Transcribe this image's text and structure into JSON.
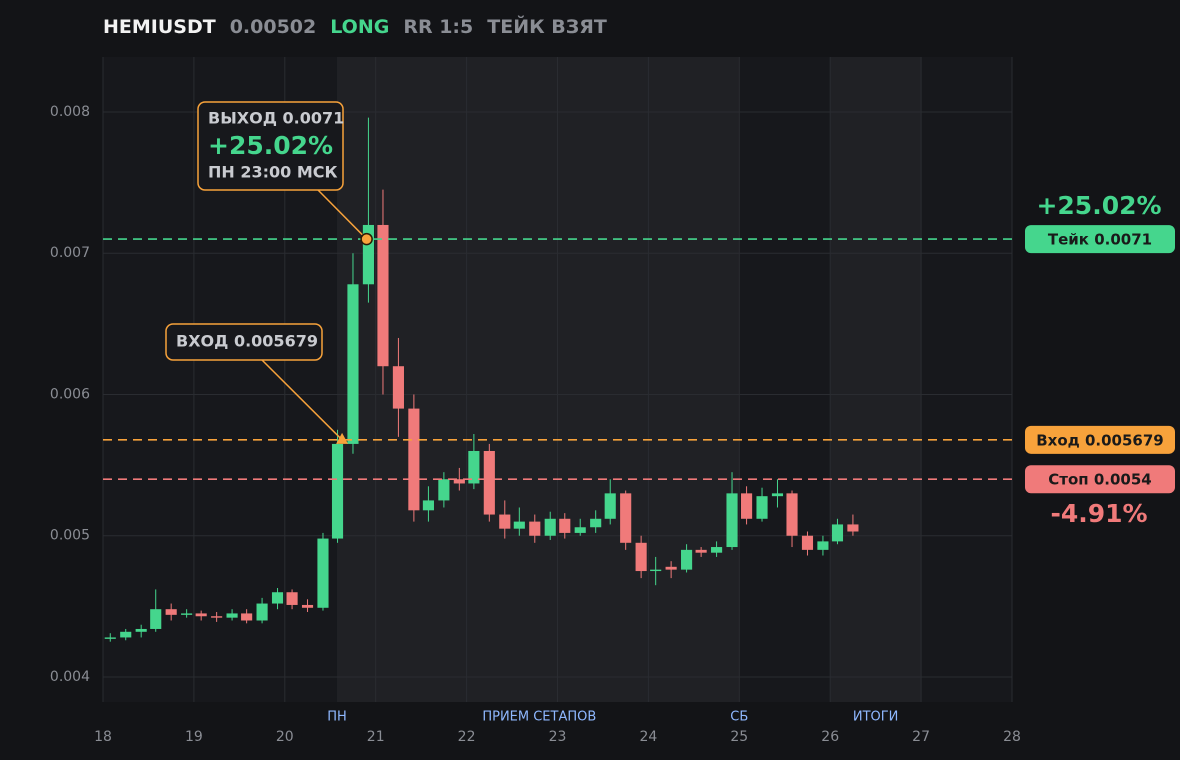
{
  "chart_data": {
    "type": "candlestick",
    "header": [
      "HEMIUSDT",
      "0.00502",
      "LONG",
      "RR 1:5",
      "ТЕЙК ВЗЯТ"
    ],
    "x": [
      18.08,
      18.25,
      18.42,
      18.58,
      18.75,
      18.92,
      19.08,
      19.25,
      19.42,
      19.58,
      19.75,
      19.92,
      20.08,
      20.25,
      20.42,
      20.58,
      20.75,
      20.92,
      21.08,
      21.25,
      21.42,
      21.58,
      21.75,
      21.92,
      22.08,
      22.25,
      22.42,
      22.58,
      22.75,
      22.92,
      23.08,
      23.25,
      23.42,
      23.58,
      23.75,
      23.92,
      24.08,
      24.25,
      24.42,
      24.58,
      24.75,
      24.92,
      25.08,
      25.25,
      25.42,
      25.58,
      25.75,
      25.92,
      26.08,
      26.25
    ],
    "open": [
      0.00427,
      0.00428,
      0.00432,
      0.00434,
      0.00448,
      0.00444,
      0.00445,
      0.00443,
      0.00442,
      0.00445,
      0.0044,
      0.00452,
      0.0046,
      0.00451,
      0.00449,
      0.00498,
      0.00565,
      0.00678,
      0.0072,
      0.0062,
      0.0059,
      0.00518,
      0.00525,
      0.0054,
      0.00537,
      0.0056,
      0.00515,
      0.00505,
      0.0051,
      0.005,
      0.00512,
      0.00502,
      0.00506,
      0.00512,
      0.0053,
      0.00495,
      0.00475,
      0.00478,
      0.00476,
      0.0049,
      0.00488,
      0.00492,
      0.0053,
      0.00512,
      0.00528,
      0.0053,
      0.005,
      0.0049,
      0.00496,
      0.00508
    ],
    "high": [
      0.00431,
      0.00434,
      0.00437,
      0.00462,
      0.00452,
      0.00448,
      0.00447,
      0.00446,
      0.00448,
      0.00448,
      0.00456,
      0.00463,
      0.00462,
      0.00455,
      0.00502,
      0.00575,
      0.007,
      0.00796,
      0.00745,
      0.0064,
      0.006,
      0.00535,
      0.00545,
      0.00548,
      0.00572,
      0.00565,
      0.00525,
      0.0052,
      0.00515,
      0.00517,
      0.00516,
      0.00512,
      0.00518,
      0.0054,
      0.00532,
      0.005,
      0.00485,
      0.00482,
      0.00494,
      0.00492,
      0.00496,
      0.00545,
      0.00535,
      0.00534,
      0.0054,
      0.00532,
      0.00503,
      0.005,
      0.00512,
      0.00515
    ],
    "low": [
      0.00425,
      0.00426,
      0.00428,
      0.00432,
      0.0044,
      0.00442,
      0.0044,
      0.00439,
      0.0044,
      0.00438,
      0.00438,
      0.00448,
      0.00448,
      0.00446,
      0.00447,
      0.00495,
      0.00558,
      0.00665,
      0.006,
      0.0057,
      0.0051,
      0.0051,
      0.0052,
      0.00532,
      0.00533,
      0.0051,
      0.00498,
      0.005,
      0.00495,
      0.00497,
      0.00498,
      0.005,
      0.00502,
      0.00508,
      0.0049,
      0.0047,
      0.00465,
      0.0047,
      0.00474,
      0.00485,
      0.00485,
      0.0049,
      0.00508,
      0.0051,
      0.0052,
      0.00492,
      0.00486,
      0.00486,
      0.00494,
      0.005
    ],
    "close": [
      0.00428,
      0.00432,
      0.00434,
      0.00448,
      0.00444,
      0.00445,
      0.00443,
      0.00442,
      0.00445,
      0.0044,
      0.00452,
      0.0046,
      0.00451,
      0.00449,
      0.00498,
      0.00565,
      0.00678,
      0.0072,
      0.0062,
      0.0059,
      0.00518,
      0.00525,
      0.0054,
      0.00537,
      0.0056,
      0.00515,
      0.00505,
      0.0051,
      0.005,
      0.00512,
      0.00502,
      0.00506,
      0.00512,
      0.0053,
      0.00495,
      0.00475,
      0.00476,
      0.00476,
      0.0049,
      0.00488,
      0.00492,
      0.0053,
      0.00512,
      0.00528,
      0.0053,
      0.005,
      0.0049,
      0.00496,
      0.00508,
      0.00503
    ],
    "up_color": "#45d68d",
    "down_color": "#f07a7a",
    "xlim": [
      18,
      28
    ],
    "ylim": [
      0.003823,
      0.008389
    ],
    "xticks": [
      18,
      19,
      20,
      21,
      22,
      23,
      24,
      25,
      26,
      27,
      28
    ],
    "yticks": [
      0.004,
      0.005,
      0.006,
      0.007,
      0.008
    ],
    "grid": true,
    "bands": [
      [
        20.574,
        25
      ],
      [
        26,
        27
      ]
    ],
    "session_labels": [
      {
        "x": 20.574,
        "label": "ПН"
      },
      {
        "x": 22.8,
        "label": "ПРИЕМ СЕТАПОВ"
      },
      {
        "x": 25,
        "label": "СБ"
      },
      {
        "x": 26.5,
        "label": "ИТОГИ"
      }
    ],
    "levels": [
      {
        "value": 0.0071,
        "label": "Тейк 0.0071",
        "note": "+25.02%",
        "color": "#45d68d"
      },
      {
        "value": 0.005679,
        "label": "Вход 0.005679",
        "color": "#f7a23b"
      },
      {
        "value": 0.0054,
        "label": "Стоп 0.0054",
        "note": "-4.91%",
        "color": "#f07a7a"
      }
    ],
    "callouts": [
      {
        "x": 20.9,
        "y": 0.0071,
        "marker": "circle",
        "lines": [
          "ВЫХОД 0.0071",
          "+25.02%",
          "ПН 23:00 МСК"
        ]
      },
      {
        "x": 20.63,
        "y": 0.005679,
        "marker": "triangle",
        "lines": [
          "ВХОД 0.005679"
        ]
      }
    ]
  }
}
